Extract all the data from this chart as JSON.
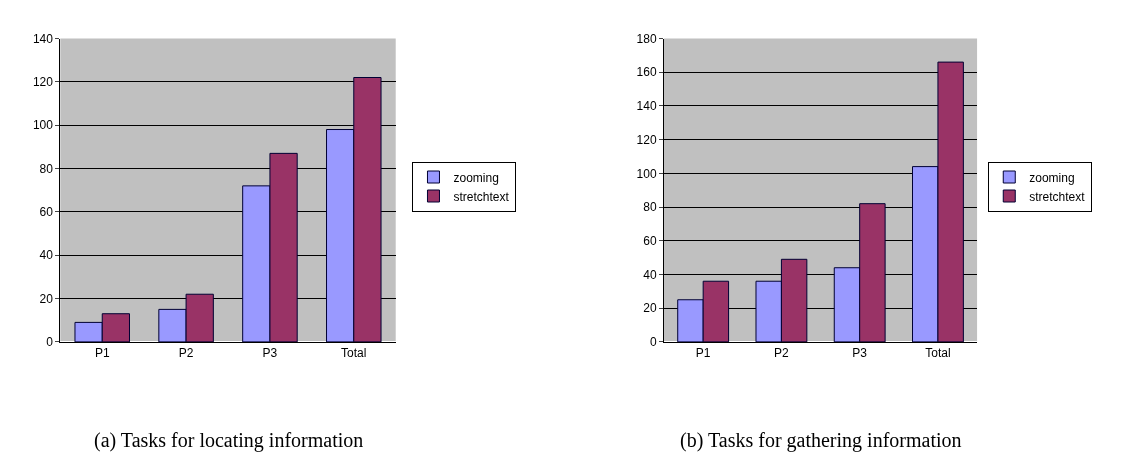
{
  "chart_data": [
    {
      "type": "bar",
      "categories": [
        "P1",
        "P2",
        "P3",
        "Total"
      ],
      "series": [
        {
          "name": "zooming",
          "color": "#9999ff",
          "values": [
            9,
            15,
            72,
            98
          ]
        },
        {
          "name": "stretchtext",
          "color": "#993366",
          "values": [
            13,
            22,
            87,
            122
          ]
        }
      ],
      "ylim": [
        0,
        140
      ],
      "yticks": [
        0,
        20,
        40,
        60,
        80,
        100,
        120,
        140
      ],
      "grid": "y",
      "legend": "right",
      "annotations": [
        "(a) Tasks for locating information"
      ]
    },
    {
      "type": "bar",
      "categories": [
        "P1",
        "P2",
        "P3",
        "Total"
      ],
      "series": [
        {
          "name": "zooming",
          "color": "#9999ff",
          "values": [
            25,
            36,
            44,
            104
          ]
        },
        {
          "name": "stretchtext",
          "color": "#993366",
          "values": [
            36,
            49,
            82,
            166
          ]
        }
      ],
      "ylim": [
        0,
        180
      ],
      "yticks": [
        0,
        20,
        40,
        60,
        80,
        100,
        120,
        140,
        160,
        180
      ],
      "grid": "y",
      "legend": "right",
      "annotations": [
        "(b) Tasks for gathering information"
      ]
    }
  ]
}
